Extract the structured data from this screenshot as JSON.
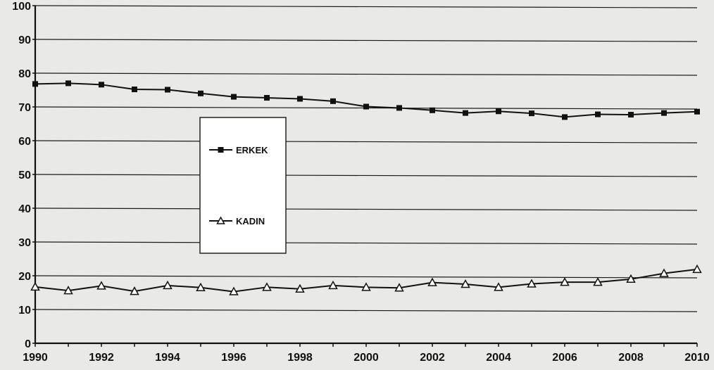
{
  "chart_data": {
    "type": "line",
    "x": [
      1990,
      1991,
      1992,
      1993,
      1994,
      1995,
      1996,
      1997,
      1998,
      1999,
      2000,
      2001,
      2002,
      2003,
      2004,
      2005,
      2006,
      2007,
      2008,
      2009,
      2010
    ],
    "xticks": [
      "1990",
      "1992",
      "1994",
      "1996",
      "1998",
      "2000",
      "2002",
      "2004",
      "2006",
      "2008",
      "2010"
    ],
    "yticks": [
      "0",
      "10",
      "20",
      "30",
      "40",
      "50",
      "60",
      "70",
      "80",
      "90",
      "100"
    ],
    "ylim": [
      0,
      100
    ],
    "xlim": [
      1990,
      2010
    ],
    "grid": true,
    "legend_position": "center-left",
    "series": [
      {
        "name": "ERKEK",
        "marker": "square",
        "color": "#111111",
        "values": [
          76.8,
          77.0,
          76.6,
          75.2,
          75.1,
          74.0,
          73.0,
          72.7,
          72.4,
          71.7,
          70.1,
          69.7,
          69.0,
          68.2,
          68.7,
          68.1,
          67.0,
          67.8,
          67.7,
          68.2,
          68.6
        ]
      },
      {
        "name": "KADIN",
        "marker": "triangle",
        "color": "#111111",
        "values": [
          16.7,
          15.6,
          17.0,
          15.4,
          17.1,
          16.5,
          15.3,
          16.6,
          16.1,
          17.1,
          16.6,
          16.4,
          18.0,
          17.5,
          16.6,
          17.6,
          18.1,
          18.1,
          19.0,
          20.7,
          21.9
        ]
      }
    ]
  }
}
